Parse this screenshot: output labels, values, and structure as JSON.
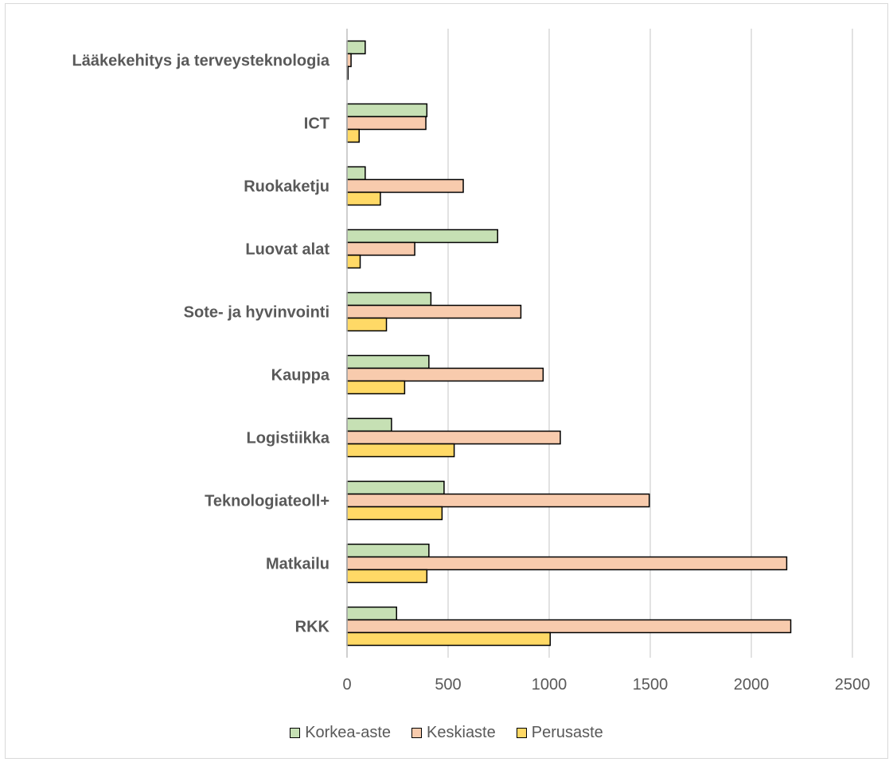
{
  "chart_data": {
    "type": "bar",
    "orientation": "horizontal",
    "categories": [
      "Lääkekehitys ja terveysteknologia",
      "ICT",
      "Ruokaketju",
      "Luovat alat",
      "Sote- ja hyvinvointi",
      "Kauppa",
      "Logistiikka",
      "Teknologiateoll+",
      "Matkailu",
      "RKK"
    ],
    "series": [
      {
        "name": "Korkea-aste",
        "color": "#c6e0b4",
        "values": [
          90,
          395,
          90,
          745,
          415,
          405,
          220,
          480,
          405,
          245
        ]
      },
      {
        "name": "Keskiaste",
        "color": "#f8cbad",
        "values": [
          20,
          390,
          575,
          335,
          860,
          970,
          1055,
          1495,
          2175,
          2195
        ]
      },
      {
        "name": "Perusaste",
        "color": "#ffd966",
        "values": [
          5,
          60,
          165,
          65,
          195,
          285,
          530,
          470,
          395,
          1005
        ]
      }
    ],
    "xlim": [
      0,
      2500
    ],
    "xticks": [
      "0",
      "500",
      "1000",
      "1500",
      "2000",
      "2500"
    ],
    "grid": "vertical",
    "legend": "bottom",
    "title": "",
    "xlabel": "",
    "ylabel": ""
  }
}
